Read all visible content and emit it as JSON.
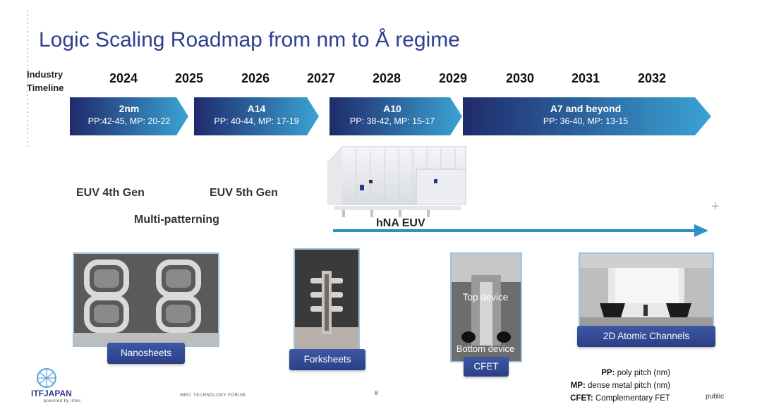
{
  "title": "Logic Scaling Roadmap from nm to Å regime",
  "timeline_label": [
    "Industry",
    "Timeline"
  ],
  "years": [
    "2024",
    "2025",
    "2026",
    "2027",
    "2028",
    "2029",
    "2030",
    "2031",
    "2032"
  ],
  "nodes": [
    {
      "name": "2nm",
      "spec": "PP:42-45, MP: 20-22"
    },
    {
      "name": "A14",
      "spec": "PP: 40-44, MP: 17-19"
    },
    {
      "name": "A10",
      "spec": "PP: 38-42, MP: 15-17"
    },
    {
      "name": "A7 and beyond",
      "spec": "PP: 36-40, MP: 13-15"
    }
  ],
  "litho": {
    "euv4": "EUV 4th Gen",
    "euv5": "EUV 5th Gen",
    "multipatterning": "Multi-patterning",
    "hna": "hNA EUV"
  },
  "devices": [
    {
      "label": "Nanosheets"
    },
    {
      "label": "Forksheets"
    },
    {
      "label": "CFET",
      "top": "Top device",
      "bottom": "Bottom device"
    },
    {
      "label": "2D Atomic Channels"
    }
  ],
  "legend": [
    {
      "key": "PP:",
      "text": "poly pitch (nm)"
    },
    {
      "key": "MP:",
      "text": "dense metal pitch (nm)"
    },
    {
      "key": "CFET:",
      "text": "Complementary FET"
    }
  ],
  "footer": {
    "logo_text": "ITFJAPAN",
    "logo_sub": "powered by imec",
    "forum": "IMEC TECHNOLOGY FORUM",
    "page": "8",
    "classification": "public"
  },
  "colors": {
    "title": "#2d3f8e",
    "arrow_dark": "#1f2a6b",
    "arrow_light": "#3aa3d4",
    "tag": "#2b3f85"
  }
}
